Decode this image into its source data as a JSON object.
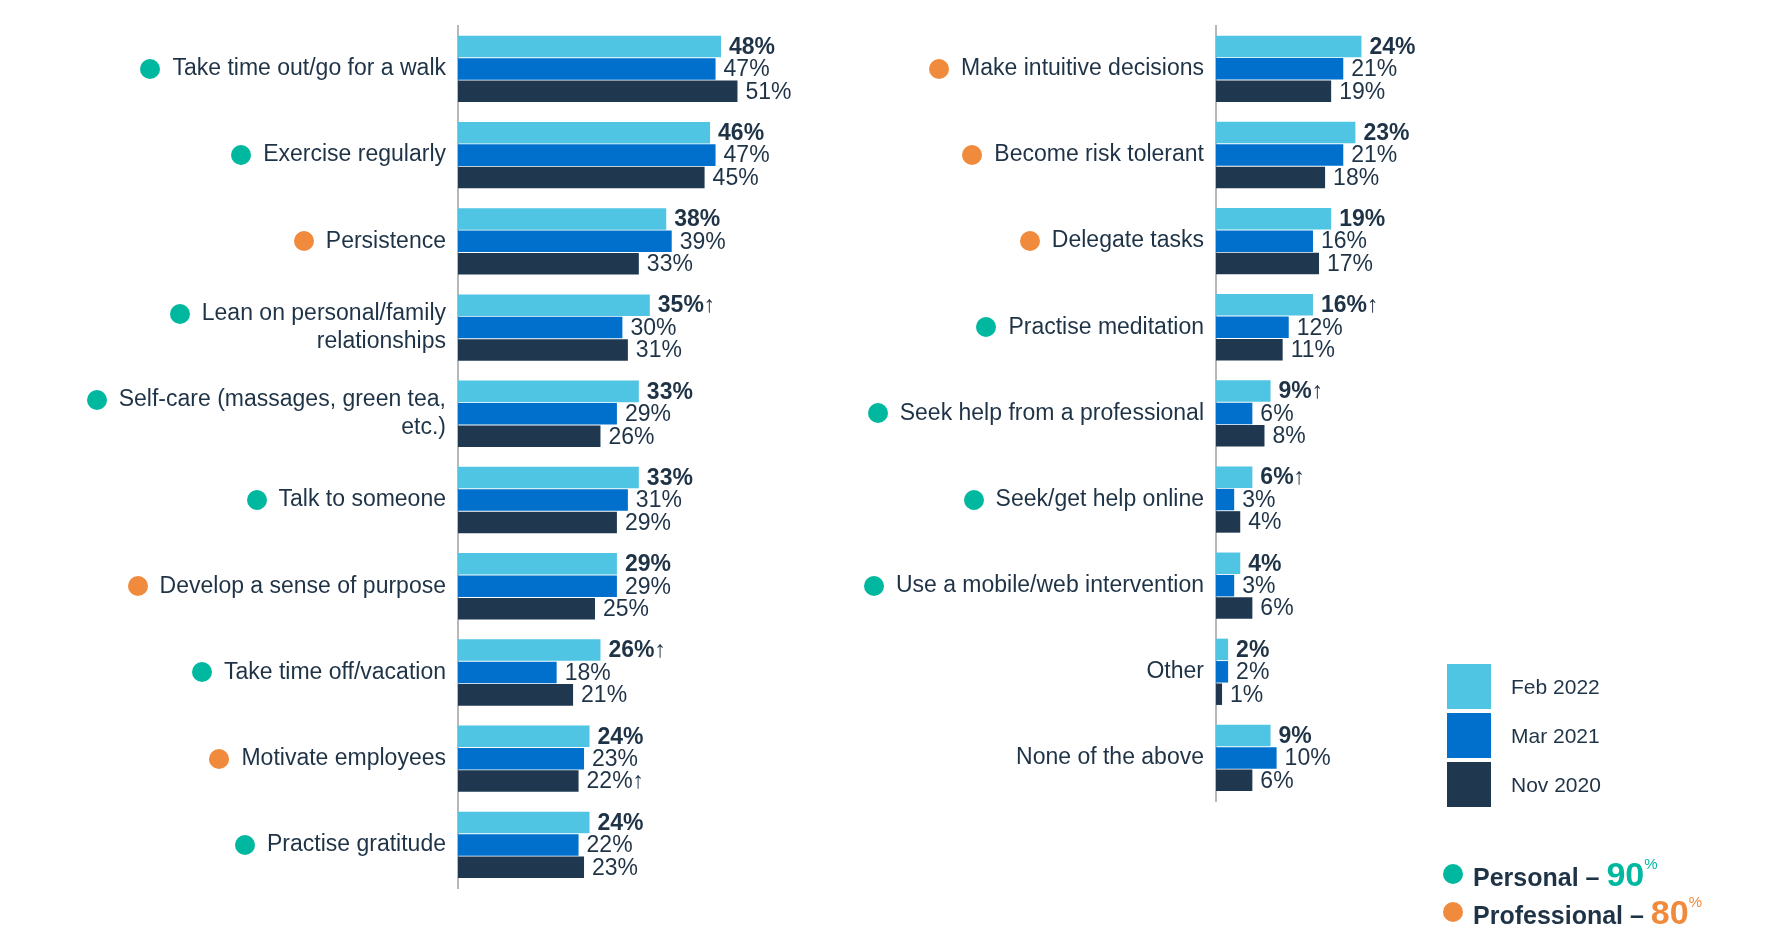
{
  "chart_data": [
    {
      "type": "bar",
      "orientation": "horizontal",
      "tick_labels": "y",
      "legend": false,
      "categories": [
        "Take time out/go for a walk",
        "Exercise regularly",
        "Persistence",
        "Lean on personal/family relationships",
        "Self-care (massages, green tea, etc.)",
        "Talk to someone",
        "Develop a sense of purpose",
        "Take time off/vacation",
        "Motivate employees",
        "Practise gratitude"
      ],
      "series": [
        {
          "color": "#4fc4e3",
          "values": [
            48,
            46,
            38,
            35,
            33,
            33,
            29,
            26,
            24,
            24
          ],
          "value_labels": [
            "48%",
            "46%",
            "38%",
            "35%↑",
            "33%",
            "33%",
            "29%",
            "26%↑",
            "24%",
            "24%"
          ]
        },
        {
          "color": "#0070cc",
          "values": [
            47,
            47,
            39,
            30,
            29,
            31,
            29,
            18,
            23,
            22
          ],
          "value_labels": [
            "47%",
            "47%",
            "39%",
            "30%",
            "29%",
            "31%",
            "29%",
            "18%",
            "23%",
            "22%"
          ]
        },
        {
          "color": "#1f3850",
          "values": [
            51,
            45,
            33,
            31,
            26,
            29,
            25,
            21,
            22,
            23
          ],
          "value_labels": [
            "51%",
            "45%",
            "33%",
            "31%",
            "26%",
            "29%",
            "25%",
            "21%",
            "22%↑",
            "23%"
          ]
        }
      ]
    },
    {
      "type": "bar",
      "orientation": "horizontal",
      "tick_labels": "y",
      "legend": "bottom right",
      "categories": [
        "Make intuitive decisions",
        "Become risk tolerant",
        "Delegate tasks",
        "Practise meditation",
        "Seek help from a professional",
        "Seek/get help online",
        "Use a mobile/web intervention",
        "Other",
        "None of the above"
      ],
      "series": [
        {
          "name": "Feb 2022",
          "color": "#4fc4e3",
          "values": [
            24,
            23,
            19,
            16,
            9,
            6,
            4,
            2,
            9
          ],
          "value_labels": [
            "24%",
            "23%",
            "19%",
            "16%↑",
            "9%↑",
            "6%↑",
            "4%",
            "2%",
            "9%"
          ]
        },
        {
          "name": "Mar 2021",
          "color": "#0070cc",
          "values": [
            21,
            21,
            16,
            12,
            6,
            3,
            3,
            2,
            10
          ],
          "value_labels": [
            "21%",
            "21%",
            "16%",
            "12%",
            "6%",
            "3%",
            "3%",
            "2%",
            "10%"
          ]
        },
        {
          "name": "Nov 2020",
          "color": "#1f3850",
          "values": [
            19,
            18,
            17,
            11,
            8,
            4,
            6,
            1,
            6
          ],
          "value_labels": [
            "19%",
            "18%",
            "17%",
            "11%",
            "8%",
            "4%",
            "6%",
            "1%",
            "6%"
          ]
        }
      ],
      "annotations": [
        "Personal – 90%",
        "Professional – 80%"
      ]
    }
  ]
}
